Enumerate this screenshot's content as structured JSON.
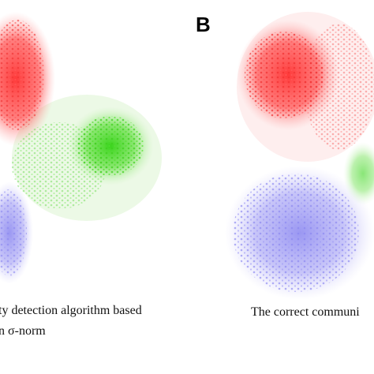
{
  "panels": [
    {
      "caption": [
        "ty detection algorithm based",
        "n σ-norm"
      ]
    },
    {
      "label": "B",
      "caption": [
        "The correct communi"
      ]
    }
  ]
}
